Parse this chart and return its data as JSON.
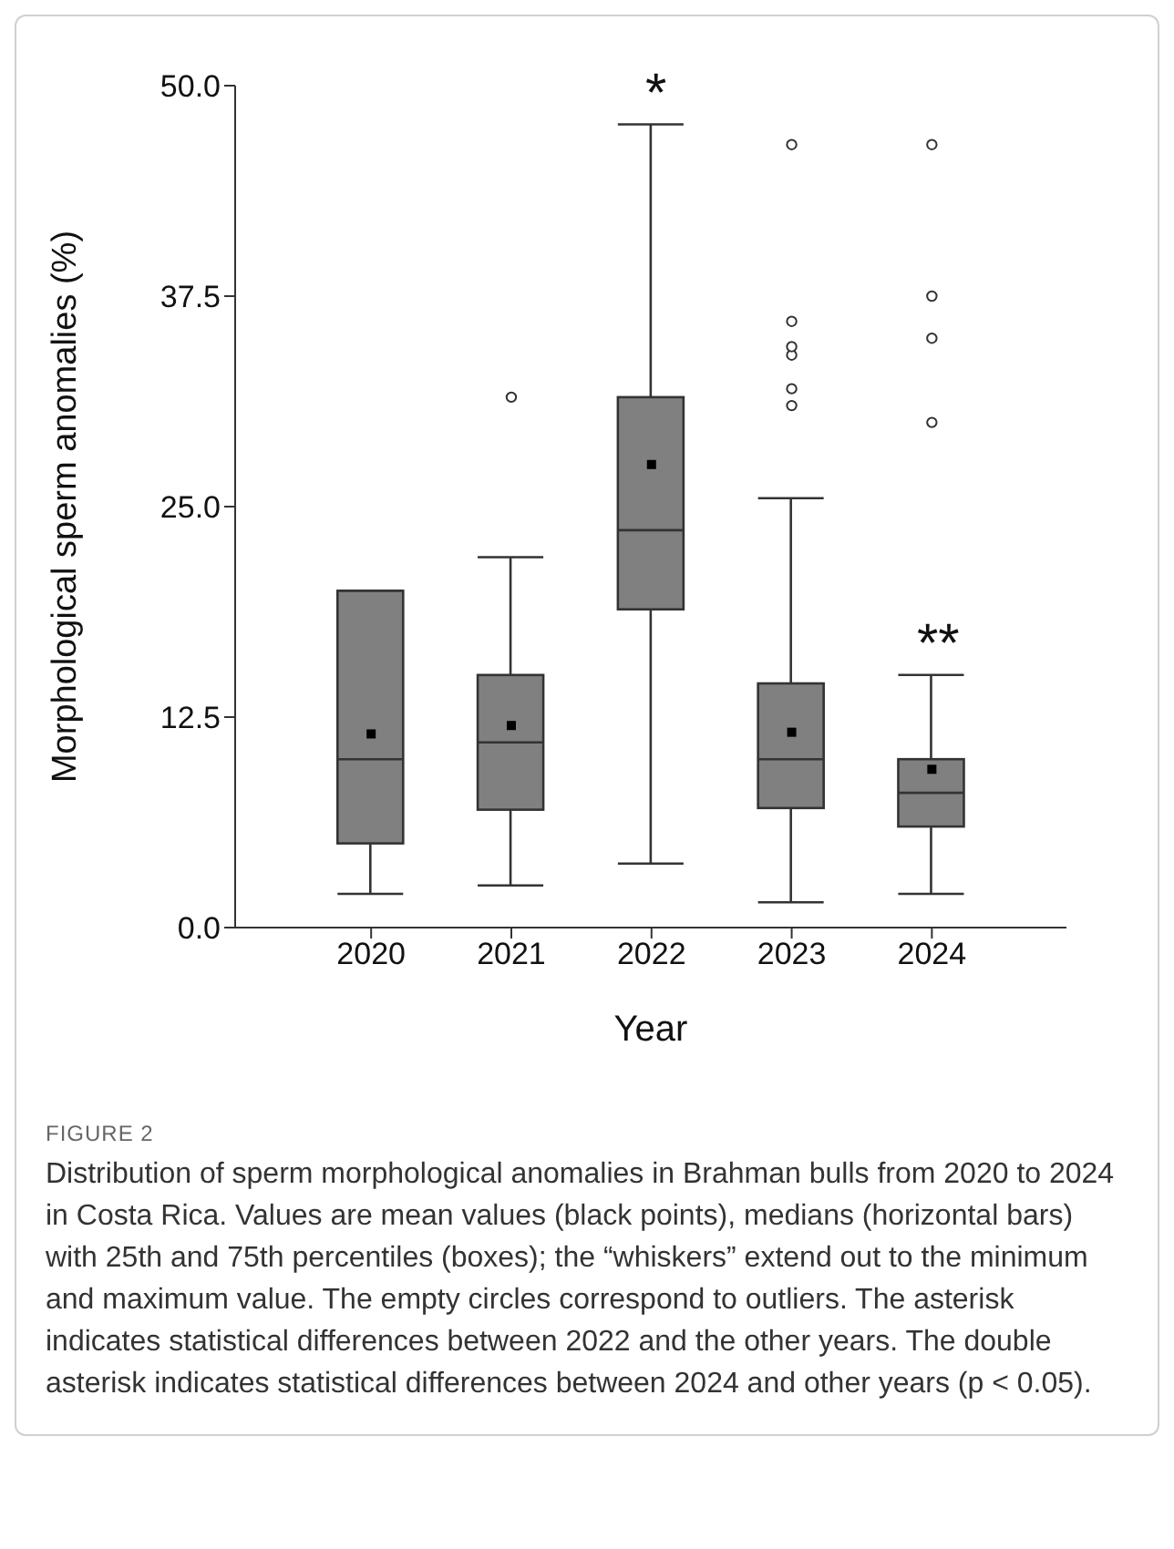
{
  "chart_data": {
    "type": "box",
    "xlabel": "Year",
    "ylabel": "Morphological sperm anomalies (%)",
    "categories": [
      "2020",
      "2021",
      "2022",
      "2023",
      "2024"
    ],
    "ylim": [
      0,
      50
    ],
    "yticks": [
      {
        "value": 0,
        "label": "0.0"
      },
      {
        "value": 12.5,
        "label": "12.5"
      },
      {
        "value": 25,
        "label": "25.0"
      },
      {
        "value": 37.5,
        "label": "37.5"
      },
      {
        "value": 50,
        "label": "50.0"
      }
    ],
    "marker": "square",
    "series": [
      {
        "color": "#808080",
        "boxes": [
          {
            "low": 2,
            "q1": 5,
            "median": 10,
            "q3": 20,
            "high": 20,
            "mean": 11.5
          },
          {
            "low": 2.5,
            "q1": 7,
            "median": 11,
            "q3": 15,
            "high": 22,
            "mean": 12,
            "outliers": [
              31.5
            ]
          },
          {
            "low": 3.8,
            "q1": 18.9,
            "median": 23.6,
            "q3": 31.5,
            "high": 47.7,
            "mean": 27.5
          },
          {
            "low": 1.5,
            "q1": 7.1,
            "median": 10,
            "q3": 14.5,
            "high": 25.5,
            "mean": 11.6,
            "outliers": [
              31,
              32,
              34,
              34.5,
              36,
              46.5
            ]
          },
          {
            "low": 2,
            "q1": 6,
            "median": 8,
            "q3": 10,
            "high": 15,
            "mean": 9.4,
            "outliers": [
              30,
              35,
              37.5,
              46.5
            ]
          }
        ]
      }
    ],
    "annotations": [
      "*",
      "**",
      "FIGURE 2",
      "Distribution of sperm morphological anomalies in Brahman bulls from 2020 to 2024 in Costa Rica. Values are mean values (black points), medians (horizontal bars) with 25th and 75th percentiles (boxes); the “whiskers” extend out to the minimum and maximum value. The empty circles correspond to outliers. The asterisk indicates statistical differences between 2022 and the other years. The double asterisk indicates statistical differences between 2024 and other years (p < 0.05)."
    ]
  }
}
